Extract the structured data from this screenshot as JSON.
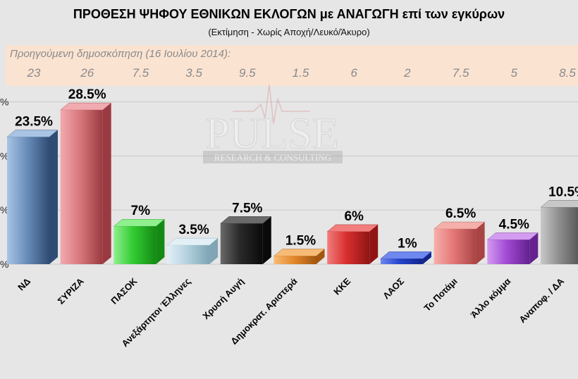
{
  "header": {
    "title": "ΠΡΟΘΕΣΗ ΨΗΦΟΥ ΕΘΝΙΚΩΝ ΕΚΛΟΓΩΝ με ΑΝΑΓΩΓΗ επί των εγκύρων",
    "subtitle": "(Εκτίμηση  -  Χωρίς Αποχή/Λευκό/Άκυρο)"
  },
  "previous_poll": {
    "label": "Προηγούμενη δημοσκόπηση  (16 Ιουλίου 2014):",
    "values": [
      "23",
      "26",
      "7.5",
      "3.5",
      "9.5",
      "1.5",
      "6",
      "2",
      "7.5",
      "5",
      "8.5"
    ]
  },
  "watermark": {
    "brand": "PULSE",
    "tagline": "RESEARCH & CONSULTING"
  },
  "colors": {
    "prev_band": "#fbe3d2",
    "prev_text": "#8a8a8a"
  },
  "chart_data": {
    "type": "bar",
    "title": "ΠΡΟΘΕΣΗ ΨΗΦΟΥ ΕΘΝΙΚΩΝ ΕΚΛΟΓΩΝ με ΑΝΑΓΩΓΗ επί των εγκύρων",
    "categories": [
      "ΝΔ",
      "ΣΥΡΙΖΑ",
      "ΠΑΣΟΚ",
      "Ανεξάρτητοι Έλληνες",
      "Χρυσή Αυγή",
      "Δημοκρατ. Αριστερά",
      "ΚΚΕ",
      "ΛΑΟΣ",
      "Το Ποτάμι",
      "Άλλο κόμμα",
      "Αναποφ. / ΔΑ"
    ],
    "values": [
      23.5,
      28.5,
      7,
      3.5,
      7.5,
      1.5,
      6,
      1,
      6.5,
      4.5,
      10.5
    ],
    "labels": [
      "23.5%",
      "28.5%",
      "7%",
      "3.5%",
      "7.5%",
      "1.5%",
      "6%",
      "1%",
      "6.5%",
      "4.5%",
      "10.5%"
    ],
    "ytick_labels": [
      "%",
      "%",
      "%",
      "%"
    ],
    "bar_colors": [
      {
        "front": "#6b8fbc",
        "light": "#a9c4e4",
        "dark": "#2f4d74"
      },
      {
        "front": "#d9787d",
        "light": "#f1aab0",
        "dark": "#9a3a40"
      },
      {
        "front": "#33cc33",
        "light": "#8ef08e",
        "dark": "#148a14"
      },
      {
        "front": "#b6d3e0",
        "light": "#e2f0f6",
        "dark": "#7fa5b6"
      },
      {
        "front": "#2a2a2a",
        "light": "#6a6a6a",
        "dark": "#0a0a0a"
      },
      {
        "front": "#e68a2e",
        "light": "#f7bb76",
        "dark": "#a3570f"
      },
      {
        "front": "#d92f2f",
        "light": "#f27d7d",
        "dark": "#901414"
      },
      {
        "front": "#2444cc",
        "light": "#6f88ef",
        "dark": "#10248a"
      },
      {
        "front": "#e57878",
        "light": "#f6b0ab",
        "dark": "#a94444"
      },
      {
        "front": "#a24bd4",
        "light": "#d39cf0",
        "dark": "#64218f"
      },
      {
        "front": "#8c8c8c",
        "light": "#c8c8c8",
        "dark": "#4e4e4e"
      }
    ],
    "grid": true,
    "ylim": [
      0,
      30
    ]
  }
}
